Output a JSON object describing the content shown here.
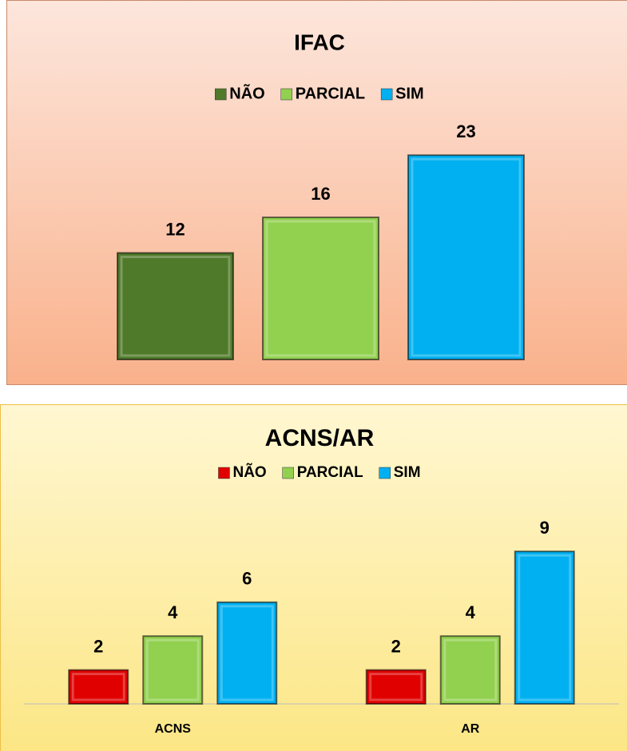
{
  "chart_data": [
    {
      "type": "bar",
      "title": "IFAC",
      "categories": [
        null
      ],
      "series": [
        {
          "name": "NÃO",
          "color": "#4f7a2a",
          "values": [
            12
          ]
        },
        {
          "name": "PARCIAL",
          "color": "#92d050",
          "values": [
            16
          ]
        },
        {
          "name": "SIM",
          "color": "#00b0f0",
          "values": [
            23
          ]
        }
      ],
      "ylim": [
        0,
        25
      ],
      "legend": "top"
    },
    {
      "type": "bar",
      "title": "ACNS/AR",
      "categories": [
        "ACNS",
        "AR"
      ],
      "series": [
        {
          "name": "NÃO",
          "color": "#e00000",
          "values": [
            2,
            2
          ]
        },
        {
          "name": "PARCIAL",
          "color": "#92d050",
          "values": [
            4,
            4
          ]
        },
        {
          "name": "SIM",
          "color": "#00b0f0",
          "values": [
            6,
            9
          ]
        }
      ],
      "ylim": [
        0,
        10
      ],
      "legend": "top"
    }
  ]
}
